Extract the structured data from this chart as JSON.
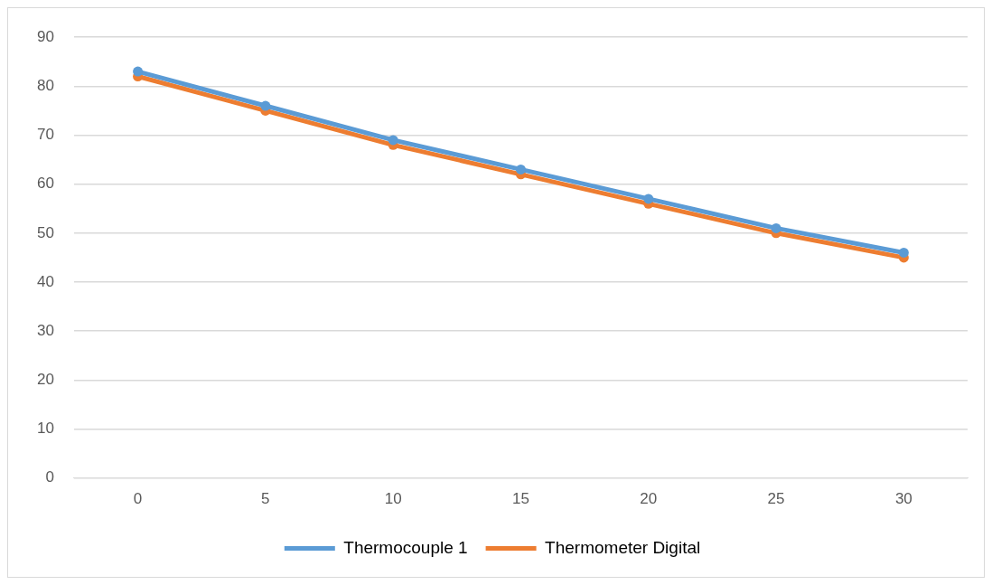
{
  "chart_data": {
    "type": "line",
    "categories": [
      "0",
      "5",
      "10",
      "15",
      "20",
      "25",
      "30"
    ],
    "series": [
      {
        "name": "Thermocouple 1",
        "color": "#5b9bd5",
        "values": [
          83,
          76,
          69,
          63,
          57,
          51,
          46
        ]
      },
      {
        "name": "Thermometer Digital",
        "color": "#ed7d31",
        "values": [
          82,
          75,
          68,
          62,
          56,
          50,
          45
        ]
      }
    ],
    "ylim": [
      0,
      90
    ],
    "yticks": [
      0,
      10,
      20,
      30,
      40,
      50,
      60,
      70,
      80,
      90
    ],
    "grid": "y",
    "legend": "bottom",
    "marker": "circle",
    "line_style": "solid"
  }
}
